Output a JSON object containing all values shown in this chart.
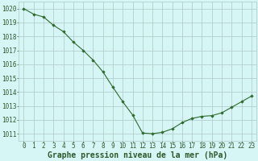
{
  "x": [
    0,
    1,
    2,
    3,
    4,
    5,
    6,
    7,
    8,
    9,
    10,
    11,
    12,
    13,
    14,
    15,
    16,
    17,
    18,
    19,
    20,
    21,
    22,
    23
  ],
  "y": [
    1020.0,
    1019.6,
    1019.4,
    1018.8,
    1018.35,
    1017.6,
    1017.0,
    1016.3,
    1015.45,
    1014.35,
    1013.3,
    1012.35,
    1011.05,
    1011.0,
    1011.1,
    1011.35,
    1011.8,
    1012.1,
    1012.25,
    1012.3,
    1012.5,
    1012.9,
    1013.3,
    1013.7
  ],
  "line_color": "#2d6a2d",
  "marker": "D",
  "marker_size": 1.8,
  "bg_color": "#d6f5f5",
  "grid_color": "#b0c8c8",
  "xlabel": "Graphe pression niveau de la mer (hPa)",
  "xlabel_fontsize": 7.0,
  "xlabel_color": "#2d5a2d",
  "ytick_labels": [
    "1011",
    "1012",
    "1013",
    "1014",
    "1015",
    "1016",
    "1017",
    "1018",
    "1019",
    "1020"
  ],
  "ylim": [
    1010.5,
    1020.5
  ],
  "xlim": [
    -0.5,
    23.5
  ],
  "xtick_labels": [
    "0",
    "1",
    "2",
    "3",
    "4",
    "5",
    "6",
    "7",
    "8",
    "9",
    "10",
    "11",
    "12",
    "13",
    "14",
    "15",
    "16",
    "17",
    "18",
    "19",
    "20",
    "21",
    "22",
    "23"
  ],
  "tick_fontsize": 5.5,
  "tick_color": "#2d5a2d",
  "ytick_vals": [
    1011,
    1012,
    1013,
    1014,
    1015,
    1016,
    1017,
    1018,
    1019,
    1020
  ]
}
